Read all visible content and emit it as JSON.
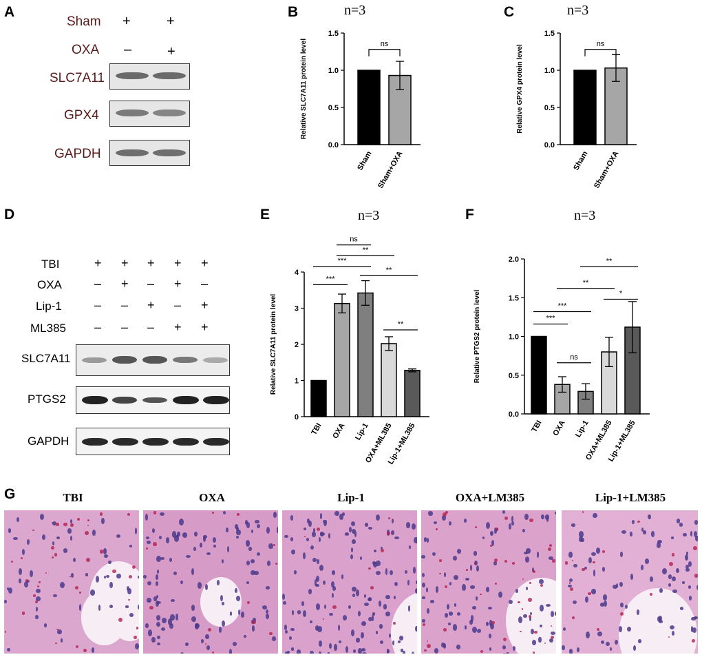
{
  "panels": {
    "A": {
      "label": "A",
      "treat_rows": [
        {
          "name": "Sham",
          "marks": [
            "+",
            "+"
          ]
        },
        {
          "name": "OXA",
          "marks": [
            "–",
            "+"
          ]
        }
      ],
      "blots": [
        "SLC7A11",
        "GPX4",
        "GAPDH"
      ]
    },
    "B": {
      "label": "B",
      "title": "n=3"
    },
    "C": {
      "label": "C",
      "title": "n=3"
    },
    "D": {
      "label": "D",
      "treat_rows": [
        {
          "name": "TBI",
          "marks": [
            "+",
            "+",
            "+",
            "+",
            "+"
          ]
        },
        {
          "name": "OXA",
          "marks": [
            "–",
            "+",
            "–",
            "+",
            "–"
          ]
        },
        {
          "name": "Lip-1",
          "marks": [
            "–",
            "–",
            "+",
            "–",
            "+"
          ]
        },
        {
          "name": "ML385",
          "marks": [
            "–",
            "–",
            "–",
            "+",
            "+"
          ]
        }
      ],
      "blots": [
        "SLC7A11",
        "PTGS2",
        "GAPDH"
      ]
    },
    "E": {
      "label": "E",
      "title": "n=3"
    },
    "F": {
      "label": "F",
      "title": "n=3"
    },
    "G": {
      "label": "G",
      "titles": [
        "TBI",
        "OXA",
        "Lip-1",
        "OXA+LM385",
        "Lip-1+LM385"
      ]
    }
  },
  "chart_data": [
    {
      "id": "B",
      "type": "bar",
      "categories": [
        "Sham",
        "Sham+OXA"
      ],
      "values": [
        1.0,
        0.93
      ],
      "errors": [
        0,
        0.19
      ],
      "colors": [
        "#000000",
        "#a6a6a6"
      ],
      "ylabel": "Relative SLC7A11  protein level",
      "ylim": [
        0,
        1.5
      ],
      "yticks": [
        "0.0",
        "0.5",
        "1.0",
        "1.5"
      ],
      "comparisons": [
        {
          "from": 0,
          "to": 1,
          "label": "ns",
          "y": 1.28
        }
      ]
    },
    {
      "id": "C",
      "type": "bar",
      "categories": [
        "Sham",
        "Sham+OXA"
      ],
      "values": [
        1.0,
        1.03
      ],
      "errors": [
        0,
        0.18
      ],
      "colors": [
        "#000000",
        "#a6a6a6"
      ],
      "ylabel": "Relative GPX4  protein level",
      "ylim": [
        0,
        1.5
      ],
      "yticks": [
        "0.0",
        "0.5",
        "1.0",
        "1.5"
      ],
      "comparisons": [
        {
          "from": 0,
          "to": 1,
          "label": "ns",
          "y": 1.28
        }
      ]
    },
    {
      "id": "E",
      "type": "bar",
      "categories": [
        "TBI",
        "OXA",
        "Lip-1",
        "OXA+ML385",
        "Lip-1+ML385"
      ],
      "values": [
        1.0,
        3.13,
        3.42,
        2.02,
        1.28
      ],
      "errors": [
        0,
        0.26,
        0.34,
        0.19,
        0.04
      ],
      "colors": [
        "#000000",
        "#a6a6a6",
        "#7f7f7f",
        "#d9d9d9",
        "#595959"
      ],
      "ylabel": "Relative SLC7A11  protein level",
      "ylim": [
        0,
        4
      ],
      "yticks": [
        "0",
        "1",
        "2",
        "3",
        "4"
      ],
      "comparisons": [
        {
          "from": 0,
          "to": 1,
          "label": "***",
          "y": 3.65
        },
        {
          "from": 0,
          "to": 2,
          "label": "***",
          "y": 4.15
        },
        {
          "from": 1,
          "to": 3,
          "label": "**",
          "y": 4.45
        },
        {
          "from": 1,
          "to": 2,
          "label": "ns",
          "y": 4.75
        },
        {
          "from": 2,
          "to": 4,
          "label": "**",
          "y": 3.9
        },
        {
          "from": 3,
          "to": 4,
          "label": "**",
          "y": 2.4
        }
      ]
    },
    {
      "id": "F",
      "type": "bar",
      "categories": [
        "TBI",
        "OXA",
        "Lip-1",
        "OXA+ML385",
        "Lip-1+ML385"
      ],
      "values": [
        1.0,
        0.38,
        0.29,
        0.8,
        1.12
      ],
      "errors": [
        0,
        0.1,
        0.1,
        0.19,
        0.33
      ],
      "colors": [
        "#000000",
        "#a6a6a6",
        "#7f7f7f",
        "#d9d9d9",
        "#595959"
      ],
      "ylabel": "Relative PTGS2  protein level",
      "ylim": [
        0,
        2.0
      ],
      "yticks": [
        "0.0",
        "0.5",
        "1.0",
        "1.5",
        "2.0"
      ],
      "comparisons": [
        {
          "from": 0,
          "to": 1,
          "label": "***",
          "y": 1.16
        },
        {
          "from": 1,
          "to": 2,
          "label": "ns",
          "y": 0.66
        },
        {
          "from": 0,
          "to": 2,
          "label": "***",
          "y": 1.32
        },
        {
          "from": 1,
          "to": 3,
          "label": "**",
          "y": 1.62
        },
        {
          "from": 3,
          "to": 4,
          "label": "*",
          "y": 1.48
        },
        {
          "from": 2,
          "to": 4,
          "label": "**",
          "y": 1.9
        }
      ]
    }
  ]
}
